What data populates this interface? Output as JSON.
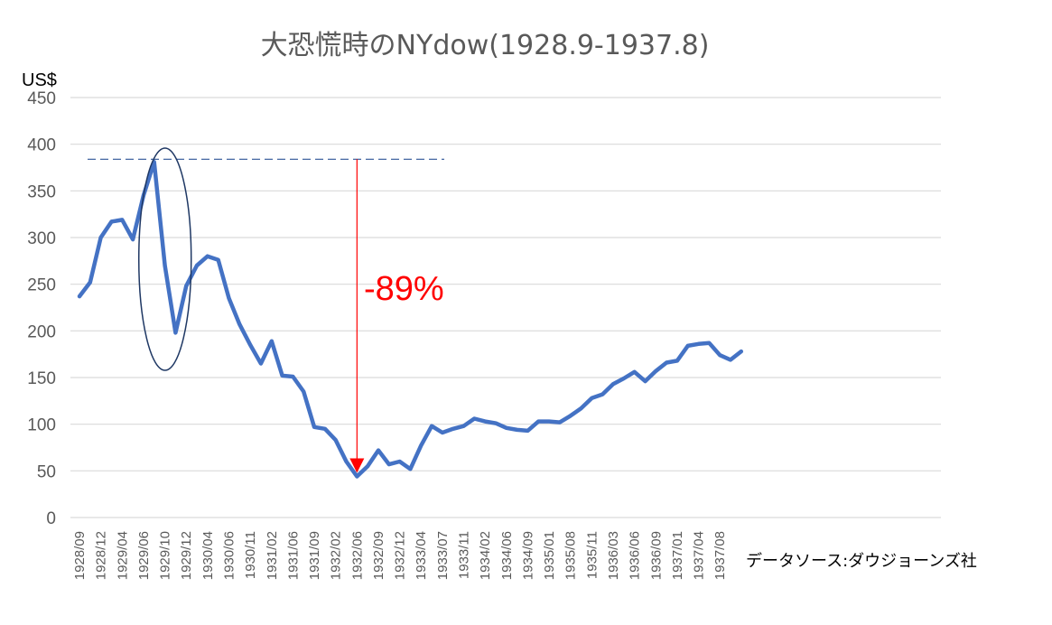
{
  "chart_data": {
    "type": "line",
    "title": "大恐慌時のNYdow(1928.9-1937.8)",
    "ylabel": "US$",
    "ylim": [
      0,
      450
    ],
    "yticks": [
      0,
      50,
      100,
      150,
      200,
      250,
      300,
      350,
      400,
      450
    ],
    "grid": true,
    "tick_labels": [
      "1928/09",
      "1928/12",
      "1929/04",
      "1929/06",
      "1929/10",
      "1929/12",
      "1930/04",
      "1930/06",
      "1930/11",
      "1931/02",
      "1931/06",
      "1931/09",
      "1932/02",
      "1932/06",
      "1932/09",
      "1932/12",
      "1933/04",
      "1933/07",
      "1933/11",
      "1934/02",
      "1934/06",
      "1934/09",
      "1935/01",
      "1935/08",
      "1935/11",
      "1936/03",
      "1936/06",
      "1936/09",
      "1937/01",
      "1937/04",
      "1937/08"
    ],
    "series": [
      {
        "color": "#4472c4",
        "values": [
          237,
          252,
          300,
          317,
          319,
          298,
          345,
          381,
          270,
          198,
          248,
          270,
          280,
          276,
          235,
          207,
          185,
          165,
          189,
          152,
          151,
          135,
          97,
          95,
          83,
          60,
          44,
          55,
          72,
          57,
          60,
          52,
          77,
          98,
          91,
          95,
          98,
          106,
          103,
          101,
          96,
          94,
          93,
          103,
          103,
          102,
          109,
          117,
          128,
          132,
          143,
          149,
          156,
          146,
          157,
          166,
          168,
          184,
          186,
          187,
          174,
          169,
          178
        ]
      }
    ],
    "annotations": {
      "drop_label": "-89%",
      "drop_color": "#ff0000",
      "peak_value": 381,
      "trough_value": 44,
      "source_note": "データソース:ダウジョーンズ社"
    }
  }
}
